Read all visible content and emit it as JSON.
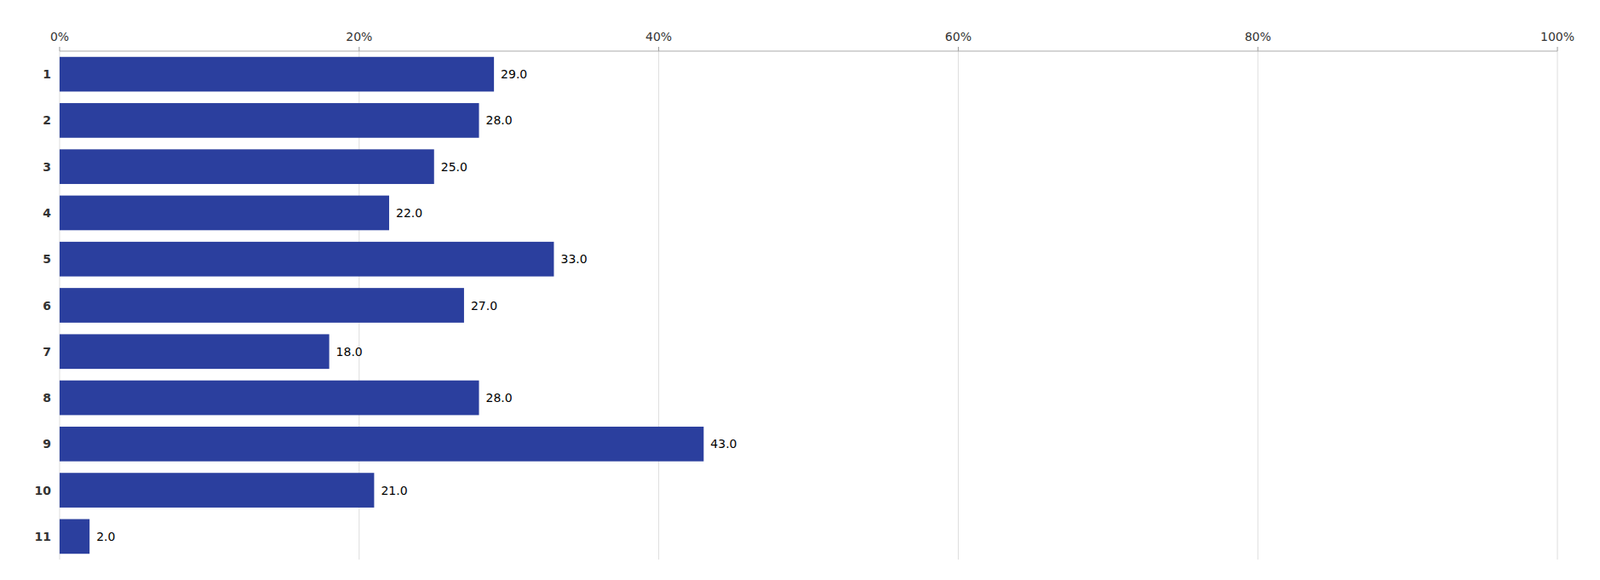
{
  "chart_data": {
    "type": "bar",
    "orientation": "horizontal",
    "categories": [
      "1",
      "2",
      "3",
      "4",
      "5",
      "6",
      "7",
      "8",
      "9",
      "10",
      "11"
    ],
    "values": [
      29.0,
      28.0,
      25.0,
      22.0,
      33.0,
      27.0,
      18.0,
      28.0,
      43.0,
      21.0,
      2.0
    ],
    "value_labels": [
      "29.0",
      "28.0",
      "25.0",
      "22.0",
      "33.0",
      "27.0",
      "18.0",
      "28.0",
      "43.0",
      "21.0",
      "2.0"
    ],
    "data_labels": true,
    "color": "#2b3f9e",
    "xlim": [
      0,
      100
    ],
    "xticks": [
      {
        "value": 0,
        "label": "0%"
      },
      {
        "value": 20,
        "label": "20%"
      },
      {
        "value": 40,
        "label": "40%"
      },
      {
        "value": 60,
        "label": "60%"
      },
      {
        "value": 80,
        "label": "80%"
      },
      {
        "value": 100,
        "label": "100%"
      }
    ],
    "grid": true
  }
}
